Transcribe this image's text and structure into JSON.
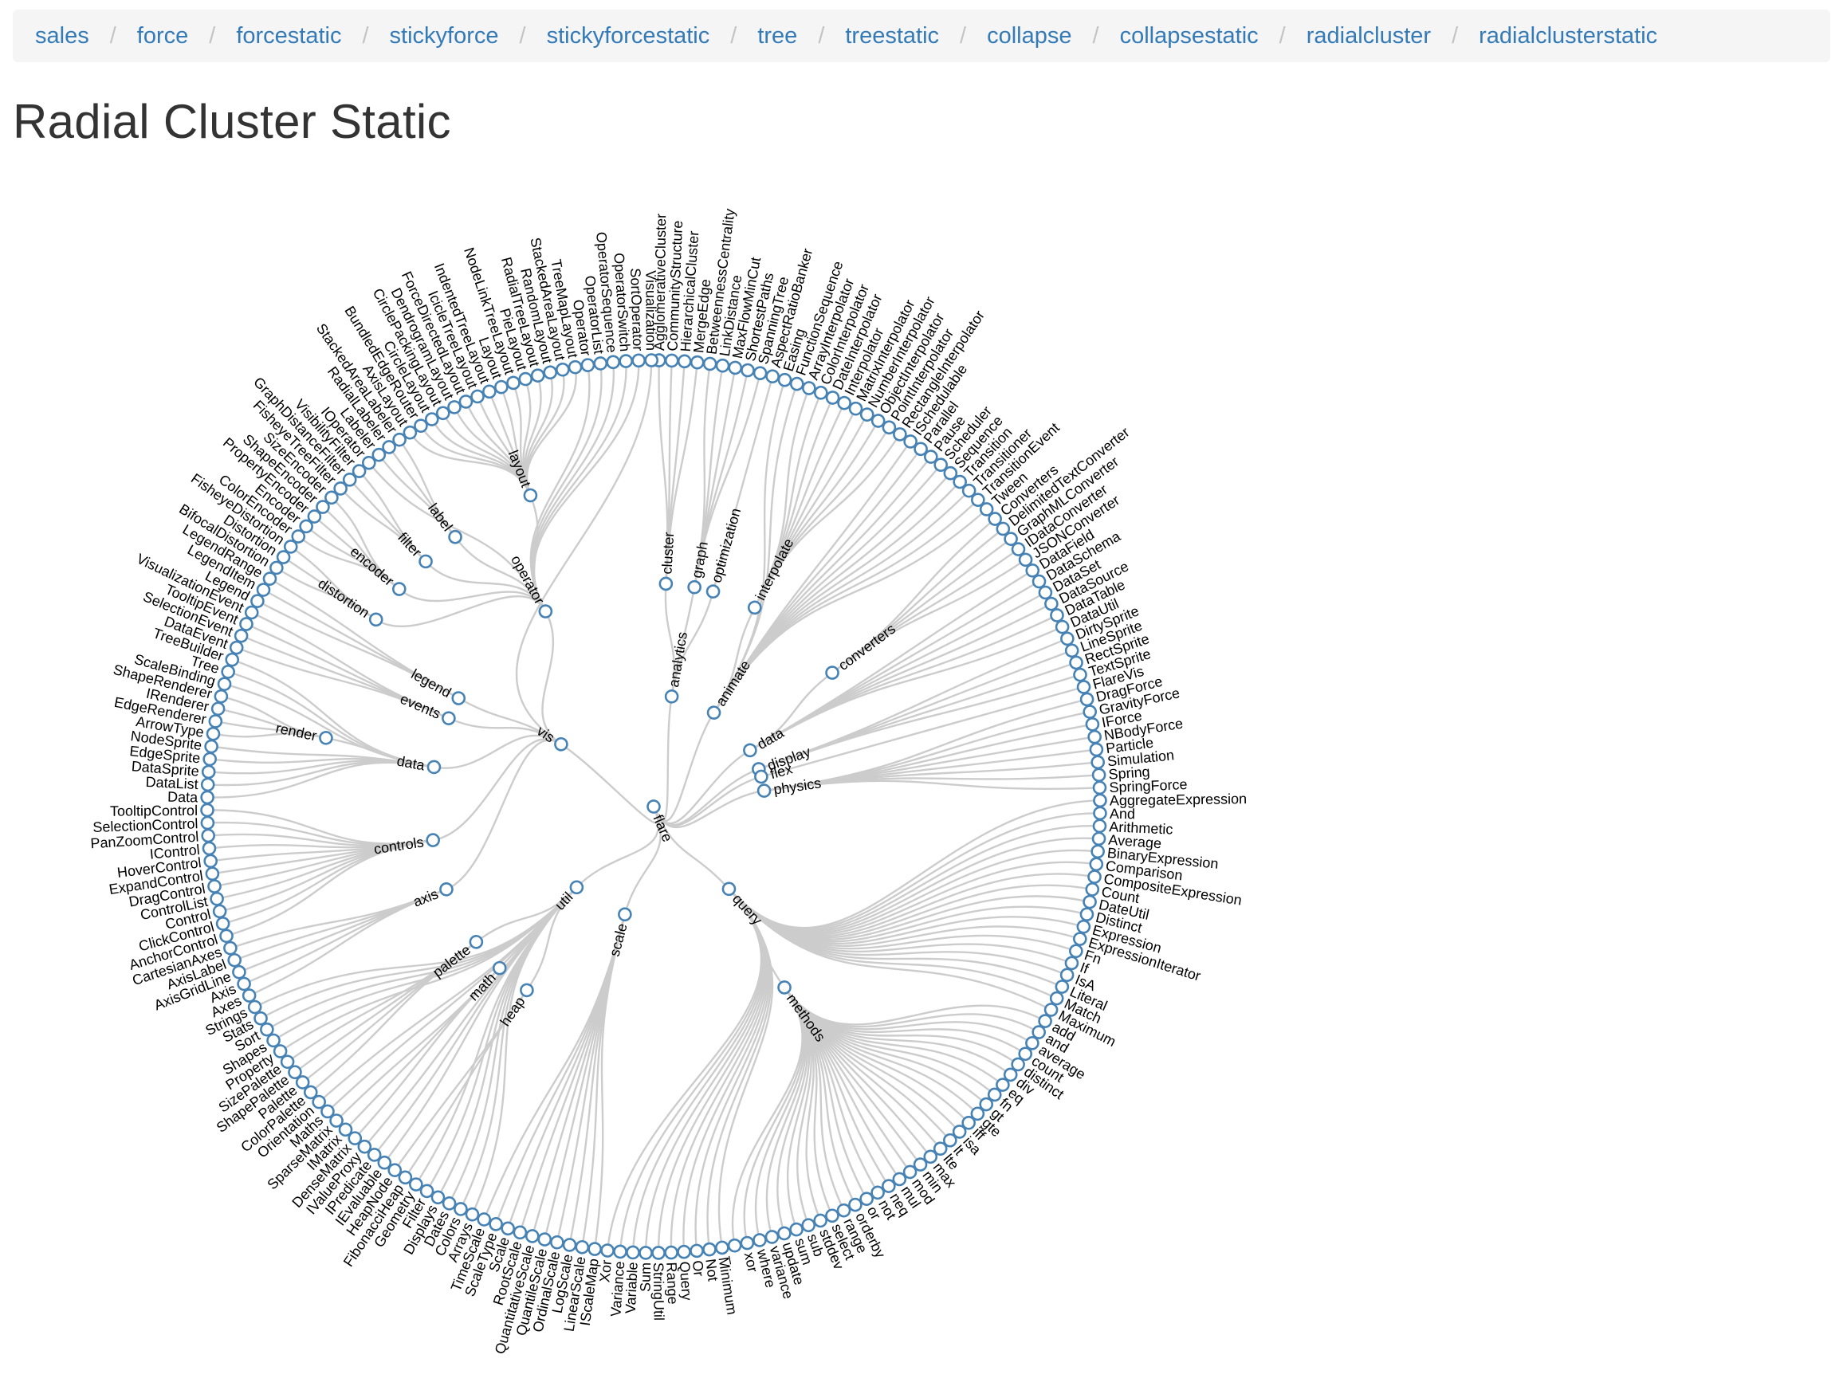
{
  "nav": {
    "items": [
      "sales",
      "force",
      "forcestatic",
      "stickyforce",
      "stickyforcestatic",
      "tree",
      "treestatic",
      "collapse",
      "collapsestatic",
      "radialcluster",
      "radialclusterstatic"
    ]
  },
  "page": {
    "title": "Radial Cluster Static"
  },
  "colors": {
    "link": "#cccccc",
    "node_stroke": "#4682b4",
    "node_fill": "#ffffff",
    "nav_link": "#337ab7",
    "nav_bg": "#f5f5f5"
  },
  "tree": {
    "name": "flare",
    "children": [
      {
        "name": "analytics",
        "children": [
          {
            "name": "cluster",
            "children": [
              {
                "name": "AgglomerativeCluster"
              },
              {
                "name": "CommunityStructure"
              },
              {
                "name": "HierarchicalCluster"
              },
              {
                "name": "MergeEdge"
              }
            ]
          },
          {
            "name": "graph",
            "children": [
              {
                "name": "BetweennessCentrality"
              },
              {
                "name": "LinkDistance"
              },
              {
                "name": "MaxFlowMinCut"
              },
              {
                "name": "ShortestPaths"
              },
              {
                "name": "SpanningTree"
              }
            ]
          },
          {
            "name": "optimization",
            "children": [
              {
                "name": "AspectRatioBanker"
              }
            ]
          }
        ]
      },
      {
        "name": "animate",
        "children": [
          {
            "name": "Easing"
          },
          {
            "name": "FunctionSequence"
          },
          {
            "name": "interpolate",
            "children": [
              {
                "name": "ArrayInterpolator"
              },
              {
                "name": "ColorInterpolator"
              },
              {
                "name": "DateInterpolator"
              },
              {
                "name": "Interpolator"
              },
              {
                "name": "MatrixInterpolator"
              },
              {
                "name": "NumberInterpolator"
              },
              {
                "name": "ObjectInterpolator"
              },
              {
                "name": "PointInterpolator"
              },
              {
                "name": "RectangleInterpolator"
              }
            ]
          },
          {
            "name": "ISchedulable"
          },
          {
            "name": "Parallel"
          },
          {
            "name": "Pause"
          },
          {
            "name": "Scheduler"
          },
          {
            "name": "Sequence"
          },
          {
            "name": "Transition"
          },
          {
            "name": "Transitioner"
          },
          {
            "name": "TransitionEvent"
          },
          {
            "name": "Tween"
          }
        ]
      },
      {
        "name": "data",
        "children": [
          {
            "name": "converters",
            "children": [
              {
                "name": "Converters"
              },
              {
                "name": "DelimitedTextConverter"
              },
              {
                "name": "GraphMLConverter"
              },
              {
                "name": "IDataConverter"
              },
              {
                "name": "JSONConverter"
              }
            ]
          },
          {
            "name": "DataField"
          },
          {
            "name": "DataSchema"
          },
          {
            "name": "DataSet"
          },
          {
            "name": "DataSource"
          },
          {
            "name": "DataTable"
          },
          {
            "name": "DataUtil"
          }
        ]
      },
      {
        "name": "display",
        "children": [
          {
            "name": "DirtySprite"
          },
          {
            "name": "LineSprite"
          },
          {
            "name": "RectSprite"
          },
          {
            "name": "TextSprite"
          }
        ]
      },
      {
        "name": "flex",
        "children": [
          {
            "name": "FlareVis"
          }
        ]
      },
      {
        "name": "physics",
        "children": [
          {
            "name": "DragForce"
          },
          {
            "name": "GravityForce"
          },
          {
            "name": "IForce"
          },
          {
            "name": "NBodyForce"
          },
          {
            "name": "Particle"
          },
          {
            "name": "Simulation"
          },
          {
            "name": "Spring"
          },
          {
            "name": "SpringForce"
          }
        ]
      },
      {
        "name": "query",
        "children": [
          {
            "name": "AggregateExpression"
          },
          {
            "name": "And"
          },
          {
            "name": "Arithmetic"
          },
          {
            "name": "Average"
          },
          {
            "name": "BinaryExpression"
          },
          {
            "name": "Comparison"
          },
          {
            "name": "CompositeExpression"
          },
          {
            "name": "Count"
          },
          {
            "name": "DateUtil"
          },
          {
            "name": "Distinct"
          },
          {
            "name": "Expression"
          },
          {
            "name": "ExpressionIterator"
          },
          {
            "name": "Fn"
          },
          {
            "name": "If"
          },
          {
            "name": "IsA"
          },
          {
            "name": "Literal"
          },
          {
            "name": "Match"
          },
          {
            "name": "Maximum"
          },
          {
            "name": "methods",
            "children": [
              {
                "name": "add"
              },
              {
                "name": "and"
              },
              {
                "name": "average"
              },
              {
                "name": "count"
              },
              {
                "name": "distinct"
              },
              {
                "name": "div"
              },
              {
                "name": "eq"
              },
              {
                "name": "fn"
              },
              {
                "name": "gt"
              },
              {
                "name": "gte"
              },
              {
                "name": "iff"
              },
              {
                "name": "isa"
              },
              {
                "name": "lt"
              },
              {
                "name": "lte"
              },
              {
                "name": "max"
              },
              {
                "name": "min"
              },
              {
                "name": "mod"
              },
              {
                "name": "mul"
              },
              {
                "name": "neq"
              },
              {
                "name": "not"
              },
              {
                "name": "or"
              },
              {
                "name": "orderby"
              },
              {
                "name": "range"
              },
              {
                "name": "select"
              },
              {
                "name": "stddev"
              },
              {
                "name": "sub"
              },
              {
                "name": "sum"
              },
              {
                "name": "update"
              },
              {
                "name": "variance"
              },
              {
                "name": "where"
              },
              {
                "name": "xor"
              },
              {
                "name": "_"
              }
            ]
          },
          {
            "name": "Minimum"
          },
          {
            "name": "Not"
          },
          {
            "name": "Or"
          },
          {
            "name": "Query"
          },
          {
            "name": "Range"
          },
          {
            "name": "StringUtil"
          },
          {
            "name": "Sum"
          },
          {
            "name": "Variable"
          },
          {
            "name": "Variance"
          },
          {
            "name": "Xor"
          }
        ]
      },
      {
        "name": "scale",
        "children": [
          {
            "name": "IScaleMap"
          },
          {
            "name": "LinearScale"
          },
          {
            "name": "LogScale"
          },
          {
            "name": "OrdinalScale"
          },
          {
            "name": "QuantileScale"
          },
          {
            "name": "QuantitativeScale"
          },
          {
            "name": "RootScale"
          },
          {
            "name": "Scale"
          },
          {
            "name": "ScaleType"
          },
          {
            "name": "TimeScale"
          }
        ]
      },
      {
        "name": "util",
        "children": [
          {
            "name": "Arrays"
          },
          {
            "name": "Colors"
          },
          {
            "name": "Dates"
          },
          {
            "name": "Displays"
          },
          {
            "name": "Filter"
          },
          {
            "name": "Geometry"
          },
          {
            "name": "heap",
            "children": [
              {
                "name": "FibonacciHeap"
              },
              {
                "name": "HeapNode"
              }
            ]
          },
          {
            "name": "IEvaluable"
          },
          {
            "name": "IPredicate"
          },
          {
            "name": "IValueProxy"
          },
          {
            "name": "math",
            "children": [
              {
                "name": "DenseMatrix"
              },
              {
                "name": "IMatrix"
              },
              {
                "name": "SparseMatrix"
              }
            ]
          },
          {
            "name": "Maths"
          },
          {
            "name": "Orientation"
          },
          {
            "name": "palette",
            "children": [
              {
                "name": "ColorPalette"
              },
              {
                "name": "Palette"
              },
              {
                "name": "ShapePalette"
              },
              {
                "name": "SizePalette"
              }
            ]
          },
          {
            "name": "Property"
          },
          {
            "name": "Shapes"
          },
          {
            "name": "Sort"
          },
          {
            "name": "Stats"
          },
          {
            "name": "Strings"
          }
        ]
      },
      {
        "name": "vis",
        "children": [
          {
            "name": "axis",
            "children": [
              {
                "name": "Axes"
              },
              {
                "name": "Axis"
              },
              {
                "name": "AxisGridLine"
              },
              {
                "name": "AxisLabel"
              },
              {
                "name": "CartesianAxes"
              }
            ]
          },
          {
            "name": "controls",
            "children": [
              {
                "name": "AnchorControl"
              },
              {
                "name": "ClickControl"
              },
              {
                "name": "Control"
              },
              {
                "name": "ControlList"
              },
              {
                "name": "DragControl"
              },
              {
                "name": "ExpandControl"
              },
              {
                "name": "HoverControl"
              },
              {
                "name": "IControl"
              },
              {
                "name": "PanZoomControl"
              },
              {
                "name": "SelectionControl"
              },
              {
                "name": "TooltipControl"
              }
            ]
          },
          {
            "name": "data",
            "children": [
              {
                "name": "Data"
              },
              {
                "name": "DataList"
              },
              {
                "name": "DataSprite"
              },
              {
                "name": "EdgeSprite"
              },
              {
                "name": "NodeSprite"
              },
              {
                "name": "render",
                "children": [
                  {
                    "name": "ArrowType"
                  },
                  {
                    "name": "EdgeRenderer"
                  },
                  {
                    "name": "IRenderer"
                  },
                  {
                    "name": "ShapeRenderer"
                  }
                ]
              },
              {
                "name": "ScaleBinding"
              },
              {
                "name": "Tree"
              },
              {
                "name": "TreeBuilder"
              }
            ]
          },
          {
            "name": "events",
            "children": [
              {
                "name": "DataEvent"
              },
              {
                "name": "SelectionEvent"
              },
              {
                "name": "TooltipEvent"
              },
              {
                "name": "VisualizationEvent"
              }
            ]
          },
          {
            "name": "legend",
            "children": [
              {
                "name": "Legend"
              },
              {
                "name": "LegendItem"
              },
              {
                "name": "LegendRange"
              }
            ]
          },
          {
            "name": "operator",
            "children": [
              {
                "name": "distortion",
                "children": [
                  {
                    "name": "BifocalDistortion"
                  },
                  {
                    "name": "Distortion"
                  },
                  {
                    "name": "FisheyeDistortion"
                  }
                ]
              },
              {
                "name": "encoder",
                "children": [
                  {
                    "name": "ColorEncoder"
                  },
                  {
                    "name": "Encoder"
                  },
                  {
                    "name": "PropertyEncoder"
                  },
                  {
                    "name": "ShapeEncoder"
                  },
                  {
                    "name": "SizeEncoder"
                  }
                ]
              },
              {
                "name": "filter",
                "children": [
                  {
                    "name": "FisheyeTreeFilter"
                  },
                  {
                    "name": "GraphDistanceFilter"
                  },
                  {
                    "name": "VisibilityFilter"
                  }
                ]
              },
              {
                "name": "IOperator"
              },
              {
                "name": "label",
                "children": [
                  {
                    "name": "Labeler"
                  },
                  {
                    "name": "RadialLabeler"
                  },
                  {
                    "name": "StackedAreaLabeler"
                  }
                ]
              },
              {
                "name": "layout",
                "children": [
                  {
                    "name": "AxisLayout"
                  },
                  {
                    "name": "BundledEdgeRouter"
                  },
                  {
                    "name": "CircleLayout"
                  },
                  {
                    "name": "CirclePackingLayout"
                  },
                  {
                    "name": "DendrogramLayout"
                  },
                  {
                    "name": "ForceDirectedLayout"
                  },
                  {
                    "name": "IcicleTreeLayout"
                  },
                  {
                    "name": "IndentedTreeLayout"
                  },
                  {
                    "name": "Layout"
                  },
                  {
                    "name": "NodeLinkTreeLayout"
                  },
                  {
                    "name": "PieLayout"
                  },
                  {
                    "name": "RadialTreeLayout"
                  },
                  {
                    "name": "RandomLayout"
                  },
                  {
                    "name": "StackedAreaLayout"
                  },
                  {
                    "name": "TreeMapLayout"
                  }
                ]
              },
              {
                "name": "Operator"
              },
              {
                "name": "OperatorList"
              },
              {
                "name": "OperatorSequence"
              },
              {
                "name": "OperatorSwitch"
              },
              {
                "name": "SortOperator"
              }
            ]
          },
          {
            "name": "Visualization"
          }
        ]
      }
    ]
  }
}
